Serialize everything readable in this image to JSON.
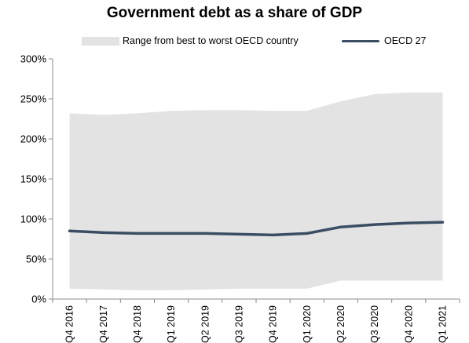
{
  "chart_data": {
    "type": "area",
    "title": "Government debt as a share of GDP",
    "xlabel": "",
    "ylabel": "",
    "ylim": [
      0,
      300
    ],
    "yticks": [
      0,
      50,
      100,
      150,
      200,
      250,
      300
    ],
    "ytick_labels": [
      "0%",
      "50%",
      "100%",
      "150%",
      "200%",
      "250%",
      "300%"
    ],
    "grid": false,
    "legend_placement": "top",
    "categories": [
      "Q4 2016",
      "Q4 2017",
      "Q4 2018",
      "Q1 2019",
      "Q2 2019",
      "Q3 2019",
      "Q4 2019",
      "Q1 2020",
      "Q2 2020",
      "Q3 2020",
      "Q4 2020",
      "Q1 2021"
    ],
    "series": [
      {
        "name": "Range from best to worst OECD country",
        "kind": "range",
        "color": "#e3e3e3",
        "low": [
          13,
          12,
          11,
          11,
          12,
          13,
          13,
          13,
          23,
          23,
          23,
          23
        ],
        "high": [
          232,
          230,
          232,
          235,
          236,
          236,
          235,
          235,
          247,
          256,
          258,
          258
        ]
      },
      {
        "name": "OECD 27",
        "kind": "line",
        "color": "#3b4d63",
        "values": [
          85,
          83,
          82,
          82,
          82,
          81,
          80,
          82,
          90,
          93,
          95,
          96
        ]
      }
    ]
  }
}
